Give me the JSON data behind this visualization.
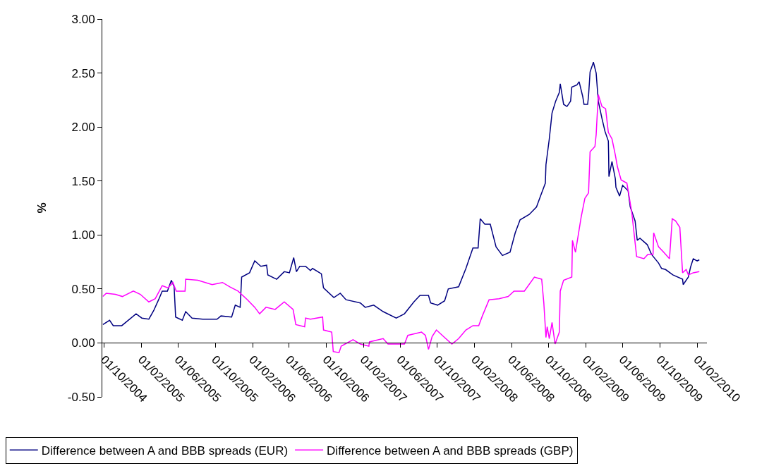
{
  "chart_data": {
    "type": "line",
    "ylabel": "%",
    "xlim": [
      "2004-09-25",
      "2010-03-05"
    ],
    "ylim": [
      -0.5,
      3.0
    ],
    "xticks": [
      {
        "value": "2004-10-01",
        "label": "01/10/2004"
      },
      {
        "value": "2005-02-01",
        "label": "01/02/2005"
      },
      {
        "value": "2005-06-01",
        "label": "01/06/2005"
      },
      {
        "value": "2005-10-01",
        "label": "01/10/2005"
      },
      {
        "value": "2006-02-01",
        "label": "01/02/2006"
      },
      {
        "value": "2006-06-01",
        "label": "01/06/2006"
      },
      {
        "value": "2006-10-01",
        "label": "01/10/2006"
      },
      {
        "value": "2007-02-01",
        "label": "01/02/2007"
      },
      {
        "value": "2007-06-01",
        "label": "01/06/2007"
      },
      {
        "value": "2007-10-01",
        "label": "01/10/2007"
      },
      {
        "value": "2008-02-01",
        "label": "01/02/2008"
      },
      {
        "value": "2008-06-01",
        "label": "01/06/2008"
      },
      {
        "value": "2008-10-01",
        "label": "01/10/2008"
      },
      {
        "value": "2009-02-01",
        "label": "01/02/2009"
      },
      {
        "value": "2009-06-01",
        "label": "01/06/2009"
      },
      {
        "value": "2009-10-01",
        "label": "01/10/2009"
      },
      {
        "value": "2010-02-01",
        "label": "01/02/2010"
      }
    ],
    "yticks": [
      {
        "value": -0.5,
        "label": "-0.50"
      },
      {
        "value": 0,
        "label": "0.00"
      },
      {
        "value": 0.5,
        "label": "0.50"
      },
      {
        "value": 1,
        "label": "1.00"
      },
      {
        "value": 1.5,
        "label": "1.50"
      },
      {
        "value": 2,
        "label": "2.00"
      },
      {
        "value": 2.5,
        "label": "2.50"
      },
      {
        "value": 3,
        "label": "3.00"
      }
    ],
    "grid": false,
    "legend": "bottom",
    "marker": "none",
    "line_style": "solid",
    "series": [
      {
        "name": "Difference between A and BBB spreads (EUR)",
        "color": "#000080",
        "x": [
          "2004-09-27",
          "2004-10-19",
          "2004-10-31",
          "2004-11-28",
          "2005-01-14",
          "2005-02-02",
          "2005-02-25",
          "2005-03-13",
          "2005-03-29",
          "2005-04-10",
          "2005-04-27",
          "2005-05-10",
          "2005-05-19",
          "2005-05-24",
          "2005-06-15",
          "2005-06-26",
          "2005-07-17",
          "2005-08-21",
          "2005-10-07",
          "2005-10-20",
          "2005-11-24",
          "2005-12-06",
          "2005-12-22",
          "2005-12-27",
          "2006-01-22",
          "2006-02-08",
          "2006-02-28",
          "2006-03-19",
          "2006-03-23",
          "2006-04-21",
          "2006-05-16",
          "2006-06-02",
          "2006-06-16",
          "2006-06-25",
          "2006-07-06",
          "2006-07-25",
          "2006-08-10",
          "2006-08-17",
          "2006-09-15",
          "2006-09-22",
          "2006-10-26",
          "2006-11-16",
          "2006-12-05",
          "2007-01-21",
          "2007-02-06",
          "2007-03-06",
          "2007-04-06",
          "2007-05-19",
          "2007-06-15",
          "2007-07-16",
          "2007-08-05",
          "2007-09-02",
          "2007-09-09",
          "2007-10-02",
          "2007-10-25",
          "2007-11-06",
          "2007-12-10",
          "2008-01-03",
          "2008-01-26",
          "2008-02-12",
          "2008-02-19",
          "2008-03-05",
          "2008-03-23",
          "2008-04-11",
          "2008-05-02",
          "2008-05-27",
          "2008-06-13",
          "2008-06-29",
          "2008-07-29",
          "2008-08-22",
          "2008-09-04",
          "2008-09-20",
          "2008-09-22",
          "2008-10-03",
          "2008-10-12",
          "2008-10-24",
          "2008-11-05",
          "2008-11-08",
          "2008-11-19",
          "2008-11-30",
          "2008-12-12",
          "2008-12-16",
          "2009-01-02",
          "2009-01-09",
          "2009-01-21",
          "2009-01-25",
          "2009-02-06",
          "2009-02-09",
          "2009-02-14",
          "2009-02-25",
          "2009-03-06",
          "2009-03-13",
          "2009-03-25",
          "2009-04-04",
          "2009-04-15",
          "2009-04-16",
          "2009-04-17",
          "2009-04-27",
          "2009-05-08",
          "2009-05-10",
          "2009-05-22",
          "2009-06-01",
          "2009-06-19",
          "2009-06-26",
          "2009-07-12",
          "2009-07-19",
          "2009-07-28",
          "2009-08-21",
          "2009-09-04",
          "2009-09-27",
          "2009-10-07",
          "2009-10-20",
          "2009-11-13",
          "2009-12-15",
          "2009-12-17",
          "2010-01-03",
          "2010-01-10",
          "2010-01-19",
          "2010-02-01",
          "2010-02-08"
        ],
        "values": [
          0.17,
          0.21,
          0.16,
          0.16,
          0.27,
          0.23,
          0.22,
          0.3,
          0.4,
          0.48,
          0.48,
          0.58,
          0.52,
          0.24,
          0.21,
          0.29,
          0.23,
          0.22,
          0.22,
          0.25,
          0.24,
          0.35,
          0.33,
          0.61,
          0.65,
          0.76,
          0.71,
          0.72,
          0.63,
          0.59,
          0.66,
          0.65,
          0.79,
          0.66,
          0.71,
          0.71,
          0.67,
          0.69,
          0.64,
          0.51,
          0.42,
          0.46,
          0.4,
          0.37,
          0.33,
          0.35,
          0.29,
          0.23,
          0.27,
          0.38,
          0.44,
          0.44,
          0.37,
          0.35,
          0.39,
          0.5,
          0.52,
          0.69,
          0.88,
          0.88,
          1.15,
          1.1,
          1.1,
          0.89,
          0.81,
          0.84,
          1.02,
          1.14,
          1.19,
          1.26,
          1.36,
          1.48,
          1.65,
          1.89,
          2.13,
          2.24,
          2.32,
          2.4,
          2.21,
          2.19,
          2.24,
          2.37,
          2.39,
          2.42,
          2.28,
          2.21,
          2.21,
          2.29,
          2.51,
          2.6,
          2.5,
          2.24,
          2.08,
          1.96,
          1.87,
          1.74,
          1.54,
          1.68,
          1.52,
          1.44,
          1.36,
          1.46,
          1.41,
          1.26,
          1.13,
          0.95,
          0.97,
          0.91,
          0.82,
          0.74,
          0.69,
          0.68,
          0.63,
          0.59,
          0.54,
          0.61,
          0.7,
          0.78,
          0.76,
          0.77
        ]
      },
      {
        "name": "Difference between A and BBB spreads (GBP)",
        "color": "#ff00ff",
        "x": [
          "2004-09-27",
          "2004-10-08",
          "2004-11-07",
          "2004-11-30",
          "2005-01-05",
          "2005-01-28",
          "2005-02-25",
          "2005-03-18",
          "2005-04-10",
          "2005-04-29",
          "2005-05-15",
          "2005-05-26",
          "2005-06-24",
          "2005-06-26",
          "2005-08-05",
          "2005-09-21",
          "2005-10-25",
          "2005-11-18",
          "2005-12-15",
          "2006-01-15",
          "2006-02-08",
          "2006-02-24",
          "2006-03-17",
          "2006-04-16",
          "2006-05-16",
          "2006-06-14",
          "2006-06-23",
          "2006-07-22",
          "2006-07-25",
          "2006-08-10",
          "2006-09-19",
          "2006-09-22",
          "2006-10-19",
          "2006-10-24",
          "2006-11-12",
          "2006-11-19",
          "2006-12-28",
          "2007-01-21",
          "2007-02-18",
          "2007-02-20",
          "2007-04-06",
          "2007-04-22",
          "2007-06-15",
          "2007-06-26",
          "2007-08-10",
          "2007-08-23",
          "2007-09-02",
          "2007-09-14",
          "2007-09-28",
          "2007-10-25",
          "2007-11-18",
          "2007-12-10",
          "2008-01-03",
          "2008-01-26",
          "2008-02-14",
          "2008-02-26",
          "2008-03-19",
          "2008-04-21",
          "2008-05-21",
          "2008-06-09",
          "2008-07-13",
          "2008-08-15",
          "2008-09-08",
          "2008-09-15",
          "2008-09-22",
          "2008-09-26",
          "2008-10-03",
          "2008-10-12",
          "2008-10-22",
          "2008-11-05",
          "2008-11-08",
          "2008-11-19",
          "2008-12-16",
          "2008-12-18",
          "2008-12-28",
          "2009-01-16",
          "2009-01-28",
          "2009-02-09",
          "2009-02-14",
          "2009-03-02",
          "2009-03-06",
          "2009-03-13",
          "2009-03-25",
          "2009-04-06",
          "2009-04-15",
          "2009-04-27",
          "2009-05-08",
          "2009-05-15",
          "2009-05-27",
          "2009-06-15",
          "2009-07-01",
          "2009-07-17",
          "2009-08-10",
          "2009-08-23",
          "2009-09-09",
          "2009-09-11",
          "2009-09-27",
          "2009-10-14",
          "2009-11-02",
          "2009-11-11",
          "2009-11-22",
          "2009-12-06",
          "2009-12-15",
          "2009-12-27",
          "2010-01-03",
          "2010-01-19",
          "2010-02-08"
        ],
        "values": [
          0.43,
          0.46,
          0.45,
          0.43,
          0.48,
          0.45,
          0.38,
          0.41,
          0.53,
          0.51,
          0.56,
          0.48,
          0.48,
          0.59,
          0.58,
          0.54,
          0.56,
          0.52,
          0.48,
          0.4,
          0.33,
          0.27,
          0.33,
          0.31,
          0.38,
          0.31,
          0.17,
          0.15,
          0.23,
          0.22,
          0.24,
          0.12,
          0.1,
          -0.08,
          -0.09,
          -0.03,
          0.03,
          -0.01,
          -0.03,
          0.01,
          0.04,
          -0.01,
          -0.01,
          0.07,
          0.1,
          0.07,
          -0.06,
          0.06,
          0.12,
          0.05,
          -0.01,
          0.04,
          0.12,
          0.16,
          0.16,
          0.25,
          0.4,
          0.41,
          0.43,
          0.48,
          0.48,
          0.61,
          0.59,
          0.37,
          0.05,
          0.15,
          0.04,
          0.19,
          -0.01,
          0.1,
          0.48,
          0.58,
          0.61,
          0.95,
          0.84,
          1.17,
          1.34,
          1.39,
          1.77,
          1.82,
          1.93,
          2.3,
          2.19,
          2.17,
          1.95,
          1.89,
          1.74,
          1.63,
          1.51,
          1.48,
          1.21,
          0.8,
          0.78,
          0.82,
          0.82,
          1.02,
          0.89,
          0.84,
          0.78,
          1.15,
          1.13,
          1.07,
          0.65,
          0.68,
          0.63,
          0.65,
          0.66
        ]
      }
    ]
  }
}
